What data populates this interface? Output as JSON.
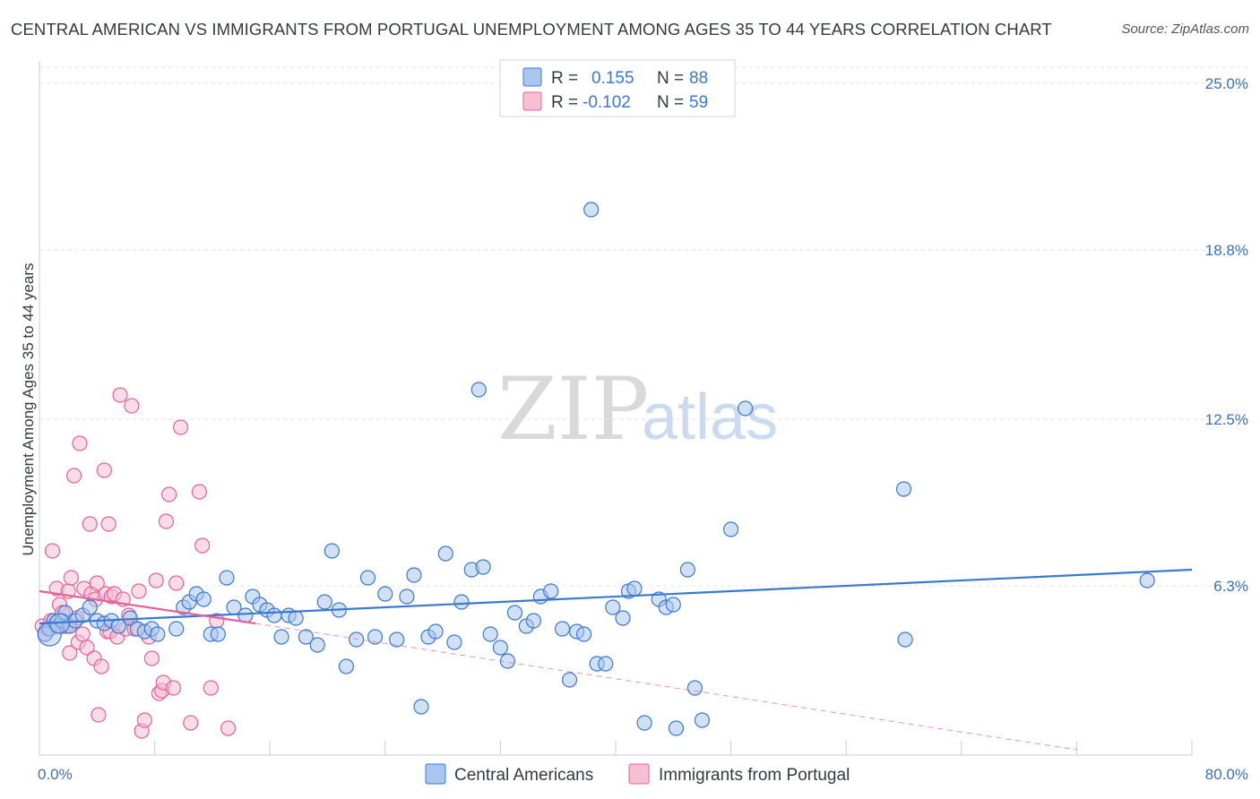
{
  "title": "CENTRAL AMERICAN VS IMMIGRANTS FROM PORTUGAL UNEMPLOYMENT AMONG AGES 35 TO 44 YEARS CORRELATION CHART",
  "source": "Source: ZipAtlas.com",
  "watermark": {
    "zip": "ZIP",
    "atlas": "atlas"
  },
  "colors": {
    "blue": "#3b78d0",
    "blue_fill": "#a9c6ee",
    "pink": "#e8609a",
    "pink_fill": "#f6bfd2",
    "tick_text": "#3a6fc4",
    "grid": "#e3e3e3"
  },
  "legend": {
    "rows": [
      {
        "r_label": "R =",
        "r_value": "0.155",
        "n_label": "N =",
        "n_value": "88"
      },
      {
        "r_label": "R =",
        "r_value": "-0.102",
        "n_label": "N =",
        "n_value": "59"
      }
    ]
  },
  "bottom_legend": [
    "Central Americans",
    "Immigrants from Portugal"
  ],
  "chart_data": {
    "type": "scatter",
    "title": "CENTRAL AMERICAN VS IMMIGRANTS FROM PORTUGAL UNEMPLOYMENT AMONG AGES 35 TO 44 YEARS CORRELATION CHART",
    "xlabel": "",
    "ylabel": "Unemployment Among Ages 35 to 44 years",
    "xlim": [
      0,
      80
    ],
    "ylim": [
      0,
      25.6
    ],
    "x_tick_labels": [
      "0.0%",
      "80.0%"
    ],
    "y_ticks": [
      6.3,
      12.5,
      18.8,
      25.0
    ],
    "y_tick_labels": [
      "6.3%",
      "12.5%",
      "18.8%",
      "25.0%"
    ],
    "grid": true,
    "legend_position": "top-center",
    "series": [
      {
        "name": "Central Americans",
        "r": 0.155,
        "n": 88,
        "trend": {
          "x": [
            0,
            80
          ],
          "y": [
            4.9,
            6.9
          ]
        },
        "points": [
          [
            0.4,
            4.5
          ],
          [
            0.7,
            4.7
          ],
          [
            1.0,
            5.0
          ],
          [
            1.3,
            4.8
          ],
          [
            1.6,
            5.0
          ],
          [
            1.8,
            5.3
          ],
          [
            2.1,
            4.8
          ],
          [
            2.5,
            5.0
          ],
          [
            3.0,
            5.2
          ],
          [
            3.5,
            5.5
          ],
          [
            4.0,
            5.0
          ],
          [
            4.5,
            4.9
          ],
          [
            5.0,
            5.0
          ],
          [
            5.5,
            4.8
          ],
          [
            6.3,
            5.1
          ],
          [
            6.8,
            4.7
          ],
          [
            7.3,
            4.6
          ],
          [
            7.8,
            4.7
          ],
          [
            8.2,
            4.5
          ],
          [
            9.5,
            4.7
          ],
          [
            10.0,
            5.5
          ],
          [
            10.4,
            5.7
          ],
          [
            10.9,
            6.0
          ],
          [
            11.4,
            5.8
          ],
          [
            11.9,
            4.5
          ],
          [
            12.4,
            4.5
          ],
          [
            13.0,
            6.6
          ],
          [
            13.5,
            5.5
          ],
          [
            14.3,
            5.2
          ],
          [
            14.8,
            5.9
          ],
          [
            15.3,
            5.6
          ],
          [
            15.8,
            5.4
          ],
          [
            16.3,
            5.2
          ],
          [
            16.8,
            4.4
          ],
          [
            17.3,
            5.2
          ],
          [
            17.8,
            5.1
          ],
          [
            18.5,
            4.4
          ],
          [
            19.3,
            4.1
          ],
          [
            19.8,
            5.7
          ],
          [
            20.3,
            7.6
          ],
          [
            20.8,
            5.4
          ],
          [
            21.3,
            3.3
          ],
          [
            22.0,
            4.3
          ],
          [
            22.8,
            6.6
          ],
          [
            23.3,
            4.4
          ],
          [
            24.0,
            6.0
          ],
          [
            24.8,
            4.3
          ],
          [
            25.5,
            5.9
          ],
          [
            26.0,
            6.7
          ],
          [
            26.5,
            1.8
          ],
          [
            27.0,
            4.4
          ],
          [
            27.5,
            4.6
          ],
          [
            28.2,
            7.5
          ],
          [
            28.8,
            4.2
          ],
          [
            29.3,
            5.7
          ],
          [
            30.0,
            6.9
          ],
          [
            30.5,
            13.6
          ],
          [
            30.8,
            7.0
          ],
          [
            31.3,
            4.5
          ],
          [
            32.0,
            4.0
          ],
          [
            32.5,
            3.5
          ],
          [
            33.0,
            5.3
          ],
          [
            33.8,
            4.8
          ],
          [
            34.3,
            5.0
          ],
          [
            34.8,
            5.9
          ],
          [
            35.5,
            6.1
          ],
          [
            36.3,
            4.7
          ],
          [
            36.8,
            2.8
          ],
          [
            37.3,
            4.6
          ],
          [
            37.8,
            4.5
          ],
          [
            38.3,
            20.3
          ],
          [
            38.7,
            3.4
          ],
          [
            39.3,
            3.4
          ],
          [
            39.8,
            5.5
          ],
          [
            40.5,
            5.1
          ],
          [
            40.9,
            6.1
          ],
          [
            41.3,
            6.2
          ],
          [
            42.0,
            1.2
          ],
          [
            43.0,
            5.8
          ],
          [
            43.5,
            5.5
          ],
          [
            44.0,
            5.6
          ],
          [
            44.2,
            1.0
          ],
          [
            45.0,
            6.9
          ],
          [
            45.5,
            2.5
          ],
          [
            46.0,
            1.3
          ],
          [
            48.0,
            8.4
          ],
          [
            49.0,
            12.9
          ],
          [
            60.0,
            9.9
          ],
          [
            60.1,
            4.3
          ],
          [
            76.9,
            6.5
          ]
        ]
      },
      {
        "name": "Immigrants from Portugal",
        "r": -0.102,
        "n": 59,
        "trend": {
          "x": [
            0,
            15
          ],
          "y": [
            6.1,
            4.9
          ]
        },
        "trend_dashed": {
          "x": [
            15,
            72
          ],
          "y": [
            4.9,
            0.2
          ]
        },
        "points": [
          [
            0.2,
            4.8
          ],
          [
            0.4,
            4.5
          ],
          [
            0.6,
            4.7
          ],
          [
            0.8,
            5.0
          ],
          [
            0.9,
            7.6
          ],
          [
            1.1,
            4.9
          ],
          [
            1.2,
            6.2
          ],
          [
            1.4,
            5.6
          ],
          [
            1.6,
            5.3
          ],
          [
            1.7,
            4.8
          ],
          [
            1.9,
            4.8
          ],
          [
            2.0,
            6.1
          ],
          [
            2.1,
            3.8
          ],
          [
            2.2,
            6.6
          ],
          [
            2.4,
            10.4
          ],
          [
            2.6,
            5.1
          ],
          [
            2.7,
            4.2
          ],
          [
            2.8,
            11.6
          ],
          [
            3.0,
            4.5
          ],
          [
            3.1,
            6.2
          ],
          [
            3.3,
            4.0
          ],
          [
            3.5,
            8.6
          ],
          [
            3.6,
            6.0
          ],
          [
            3.8,
            3.6
          ],
          [
            3.9,
            5.8
          ],
          [
            4.0,
            6.4
          ],
          [
            4.1,
            1.5
          ],
          [
            4.3,
            3.3
          ],
          [
            4.5,
            10.6
          ],
          [
            4.6,
            6.0
          ],
          [
            4.7,
            4.6
          ],
          [
            4.8,
            8.6
          ],
          [
            4.9,
            4.6
          ],
          [
            5.0,
            5.9
          ],
          [
            5.2,
            6.0
          ],
          [
            5.4,
            4.4
          ],
          [
            5.6,
            13.4
          ],
          [
            5.8,
            5.8
          ],
          [
            6.0,
            4.7
          ],
          [
            6.2,
            5.2
          ],
          [
            6.4,
            13.0
          ],
          [
            6.6,
            4.7
          ],
          [
            6.9,
            6.1
          ],
          [
            7.1,
            0.9
          ],
          [
            7.3,
            1.3
          ],
          [
            7.6,
            4.4
          ],
          [
            7.8,
            3.6
          ],
          [
            8.1,
            6.5
          ],
          [
            8.3,
            2.3
          ],
          [
            8.5,
            2.4
          ],
          [
            8.6,
            2.7
          ],
          [
            8.8,
            8.7
          ],
          [
            9.0,
            9.7
          ],
          [
            9.3,
            2.5
          ],
          [
            9.5,
            6.4
          ],
          [
            9.8,
            12.2
          ],
          [
            10.5,
            1.2
          ],
          [
            11.1,
            9.8
          ],
          [
            11.3,
            7.8
          ],
          [
            11.9,
            2.5
          ],
          [
            12.3,
            5.0
          ],
          [
            13.1,
            1.0
          ]
        ]
      }
    ]
  }
}
